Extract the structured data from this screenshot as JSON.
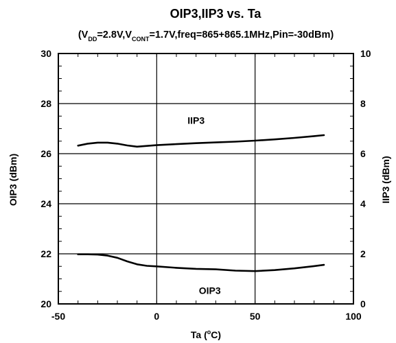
{
  "chart_data": {
    "type": "line",
    "title": "OIP3,IIP3 vs. Ta",
    "subtitle": {
      "parts": [
        {
          "text": "(V",
          "sub": false
        },
        {
          "text": "DD",
          "sub": true
        },
        {
          "text": "=2.8V,V",
          "sub": false
        },
        {
          "text": "CONT",
          "sub": true
        },
        {
          "text": "=1.7V,freq=865+865.1MHz,Pin=-30dBm)",
          "sub": false
        }
      ]
    },
    "xlabel": {
      "prefix": "Ta (",
      "sup": "o",
      "suffix": "C)"
    },
    "ylabel_left": "OIP3 (dBm)",
    "ylabel_right": "IIP3 (dBm)",
    "xlim": [
      -50,
      100
    ],
    "ylim_left": [
      20,
      30
    ],
    "ylim_right": [
      0,
      10
    ],
    "x_ticks": [
      -50,
      0,
      50,
      100
    ],
    "y_ticks_left": [
      20,
      22,
      24,
      26,
      28,
      30
    ],
    "y_ticks_right": [
      0,
      2,
      4,
      6,
      8,
      10
    ],
    "grid": true,
    "series": [
      {
        "name": "IIP3",
        "axis": "right",
        "x": [
          -40,
          -35,
          -30,
          -25,
          -20,
          -15,
          -10,
          -5,
          0,
          10,
          20,
          30,
          40,
          50,
          60,
          70,
          80,
          85
        ],
        "y": [
          6.32,
          6.4,
          6.44,
          6.44,
          6.4,
          6.33,
          6.28,
          6.31,
          6.34,
          6.38,
          6.42,
          6.45,
          6.48,
          6.52,
          6.57,
          6.63,
          6.7,
          6.74
        ]
      },
      {
        "name": "OIP3",
        "axis": "left",
        "x": [
          -40,
          -35,
          -30,
          -25,
          -20,
          -15,
          -10,
          -5,
          0,
          10,
          20,
          30,
          40,
          50,
          60,
          70,
          80,
          85
        ],
        "y": [
          21.98,
          21.98,
          21.97,
          21.93,
          21.84,
          21.7,
          21.58,
          21.52,
          21.5,
          21.44,
          21.4,
          21.38,
          21.33,
          21.31,
          21.35,
          21.42,
          21.51,
          21.56
        ]
      }
    ]
  }
}
